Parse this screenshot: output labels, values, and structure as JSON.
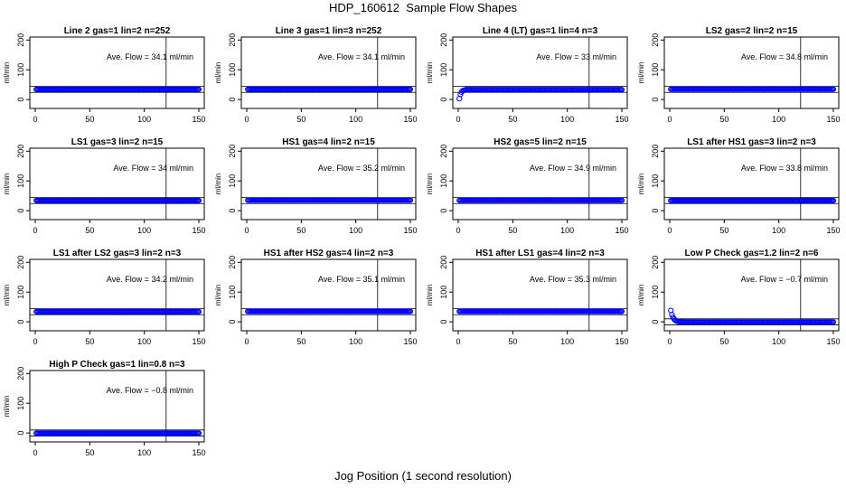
{
  "figure": {
    "title": "HDP_160612  Sample Flow Shapes",
    "xlabel": "Jog Position (1 second resolution)"
  },
  "chart_data": [
    {
      "type": "scatter",
      "title": "Line 2 gas=1 lin=2 n=252",
      "ylabel": "ml/min",
      "xlim": [
        0,
        150
      ],
      "ylim": [
        -30,
        210
      ],
      "xticks": [
        0,
        50,
        100,
        150
      ],
      "yticks": [
        0,
        100,
        200
      ],
      "marker_color": "#0000ff",
      "vline_x": 120,
      "hlines": [
        24,
        44
      ],
      "annotation": "Ave. Flow =  34.1  ml/min",
      "shape": "flat",
      "level": 34.1
    },
    {
      "type": "scatter",
      "title": "Line 3 gas=1 lin=3 n=252",
      "ylabel": "ml/min",
      "xlim": [
        0,
        150
      ],
      "ylim": [
        -30,
        210
      ],
      "xticks": [
        0,
        50,
        100,
        150
      ],
      "yticks": [
        0,
        100,
        200
      ],
      "marker_color": "#0000ff",
      "vline_x": 120,
      "hlines": [
        24,
        44
      ],
      "annotation": "Ave. Flow =  34.1  ml/min",
      "shape": "flat",
      "level": 34.1
    },
    {
      "type": "scatter",
      "title": "Line 4 (LT) gas=1 lin=4 n=3",
      "ylabel": "ml/min",
      "xlim": [
        0,
        150
      ],
      "ylim": [
        -30,
        210
      ],
      "xticks": [
        0,
        50,
        100,
        150
      ],
      "yticks": [
        0,
        100,
        200
      ],
      "marker_color": "#0000ff",
      "vline_x": 120,
      "hlines": [
        24,
        44
      ],
      "annotation": "Ave. Flow =  33   ml/min",
      "shape": "rise",
      "level": 33,
      "start": 3
    },
    {
      "type": "scatter",
      "title": "LS2 gas=2 lin=2 n=15",
      "ylabel": "ml/min",
      "xlim": [
        0,
        150
      ],
      "ylim": [
        -30,
        210
      ],
      "xticks": [
        0,
        50,
        100,
        150
      ],
      "yticks": [
        0,
        100,
        200
      ],
      "marker_color": "#0000ff",
      "vline_x": 120,
      "hlines": [
        24,
        44
      ],
      "annotation": "Ave. Flow =  34.8  ml/min",
      "shape": "flat",
      "level": 34.8
    },
    {
      "type": "scatter",
      "title": "LS1 gas=3 lin=2 n=15",
      "ylabel": "ml/min",
      "xlim": [
        0,
        150
      ],
      "ylim": [
        -30,
        210
      ],
      "xticks": [
        0,
        50,
        100,
        150
      ],
      "yticks": [
        0,
        100,
        200
      ],
      "marker_color": "#0000ff",
      "vline_x": 120,
      "hlines": [
        24,
        44
      ],
      "annotation": "Ave. Flow =  34   ml/min",
      "shape": "flat",
      "level": 34
    },
    {
      "type": "scatter",
      "title": "HS1 gas=4 lin=2 n=15",
      "ylabel": "ml/min",
      "xlim": [
        0,
        150
      ],
      "ylim": [
        -30,
        210
      ],
      "xticks": [
        0,
        50,
        100,
        150
      ],
      "yticks": [
        0,
        100,
        200
      ],
      "marker_color": "#0000ff",
      "vline_x": 120,
      "hlines": [
        24,
        44
      ],
      "annotation": "Ave. Flow =  35.2  ml/min",
      "shape": "flat",
      "level": 35.2
    },
    {
      "type": "scatter",
      "title": "HS2 gas=5 lin=2 n=15",
      "ylabel": "ml/min",
      "xlim": [
        0,
        150
      ],
      "ylim": [
        -30,
        210
      ],
      "xticks": [
        0,
        50,
        100,
        150
      ],
      "yticks": [
        0,
        100,
        200
      ],
      "marker_color": "#0000ff",
      "vline_x": 120,
      "hlines": [
        24,
        44
      ],
      "annotation": "Ave. Flow =  34.9  ml/min",
      "shape": "flat",
      "level": 34.9
    },
    {
      "type": "scatter",
      "title": "LS1 after HS1 gas=3 lin=2 n=3",
      "ylabel": "ml/min",
      "xlim": [
        0,
        150
      ],
      "ylim": [
        -30,
        210
      ],
      "xticks": [
        0,
        50,
        100,
        150
      ],
      "yticks": [
        0,
        100,
        200
      ],
      "marker_color": "#0000ff",
      "vline_x": 120,
      "hlines": [
        24,
        44
      ],
      "annotation": "Ave. Flow =  33.8  ml/min",
      "shape": "flat",
      "level": 33.8
    },
    {
      "type": "scatter",
      "title": "LS1 after LS2 gas=3 lin=2 n=3",
      "ylabel": "ml/min",
      "xlim": [
        0,
        150
      ],
      "ylim": [
        -30,
        210
      ],
      "xticks": [
        0,
        50,
        100,
        150
      ],
      "yticks": [
        0,
        100,
        200
      ],
      "marker_color": "#0000ff",
      "vline_x": 120,
      "hlines": [
        24,
        44
      ],
      "annotation": "Ave. Flow =  34.2  ml/min",
      "shape": "flat",
      "level": 34.2
    },
    {
      "type": "scatter",
      "title": "HS1 after HS2 gas=4 lin=2 n=3",
      "ylabel": "ml/min",
      "xlim": [
        0,
        150
      ],
      "ylim": [
        -30,
        210
      ],
      "xticks": [
        0,
        50,
        100,
        150
      ],
      "yticks": [
        0,
        100,
        200
      ],
      "marker_color": "#0000ff",
      "vline_x": 120,
      "hlines": [
        24,
        44
      ],
      "annotation": "Ave. Flow =  35.1  ml/min",
      "shape": "flat",
      "level": 35.1
    },
    {
      "type": "scatter",
      "title": "HS1 after LS1 gas=4 lin=2 n=3",
      "ylabel": "ml/min",
      "xlim": [
        0,
        150
      ],
      "ylim": [
        -30,
        210
      ],
      "xticks": [
        0,
        50,
        100,
        150
      ],
      "yticks": [
        0,
        100,
        200
      ],
      "marker_color": "#0000ff",
      "vline_x": 120,
      "hlines": [
        24,
        44
      ],
      "annotation": "Ave. Flow =  35.3  ml/min",
      "shape": "flat",
      "level": 35.3
    },
    {
      "type": "scatter",
      "title": "Low P Check gas=1.2 lin=2 n=6",
      "ylabel": "ml/min",
      "xlim": [
        0,
        150
      ],
      "ylim": [
        -30,
        210
      ],
      "xticks": [
        0,
        50,
        100,
        150
      ],
      "yticks": [
        0,
        100,
        200
      ],
      "marker_color": "#0000ff",
      "vline_x": 120,
      "hlines": [
        -10,
        10
      ],
      "annotation": "Ave. Flow =  −0.7  ml/min",
      "shape": "decay",
      "level": -0.7,
      "start": 38
    },
    {
      "type": "scatter",
      "title": "High P Check gas=1 lin=0.8 n=3",
      "ylabel": "ml/min",
      "xlim": [
        0,
        150
      ],
      "ylim": [
        -30,
        210
      ],
      "xticks": [
        0,
        50,
        100,
        150
      ],
      "yticks": [
        0,
        100,
        200
      ],
      "marker_color": "#0000ff",
      "vline_x": 120,
      "hlines": [
        -10,
        10
      ],
      "annotation": "Ave. Flow =  −0.8  ml/min",
      "shape": "flat",
      "level": -0.8
    }
  ]
}
